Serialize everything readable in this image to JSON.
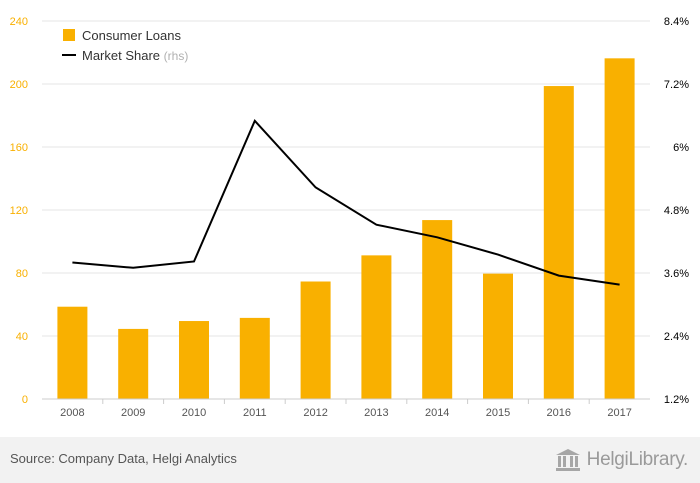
{
  "chart_data": {
    "type": "bar+line",
    "categories": [
      "2008",
      "2009",
      "2010",
      "2011",
      "2012",
      "2013",
      "2014",
      "2015",
      "2016",
      "2017"
    ],
    "series": [
      {
        "name": "Consumer Loans",
        "type": "bar",
        "axis": "left",
        "color": "#f9b000",
        "values": [
          58.6,
          44.5,
          49.5,
          51.5,
          74.6,
          91.2,
          113.6,
          79.6,
          198.7,
          216.3
        ]
      },
      {
        "name": "Market Share",
        "name_suffix": "(rhs)",
        "type": "line",
        "axis": "right",
        "color": "#000000",
        "values": [
          3.8,
          3.7,
          3.82,
          6.5,
          5.23,
          4.52,
          4.28,
          3.95,
          3.55,
          3.38
        ]
      }
    ],
    "y_left": {
      "min": 0,
      "max": 240,
      "ticks": [
        0,
        40,
        80,
        120,
        160,
        200,
        240
      ],
      "tick_color": "#f9b000"
    },
    "y_right": {
      "min": 1.2,
      "max": 8.4,
      "ticks": [
        "1.2%",
        "2.4%",
        "3.6%",
        "4.8%",
        "6%",
        "7.2%",
        "8.4%"
      ],
      "tick_color": "#000000"
    },
    "grid": true,
    "legend_position": "top-left"
  },
  "footer": {
    "source": "Source: Company Data, Helgi Analytics",
    "brand": "HelgiLibrary."
  }
}
